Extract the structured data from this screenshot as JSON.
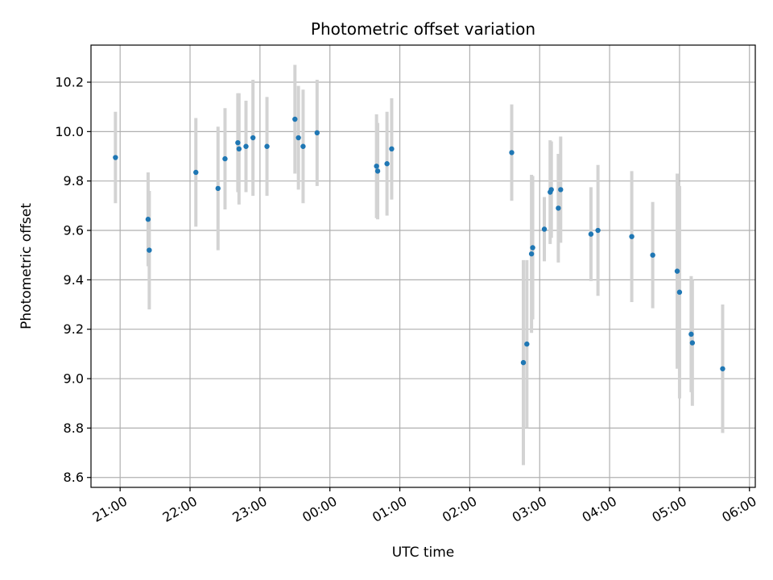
{
  "chart_data": {
    "type": "scatter",
    "title": "Photometric offset variation",
    "xlabel": "UTC time",
    "ylabel": "Photometric offset",
    "grid": true,
    "x_axis": {
      "kind": "time",
      "range": [
        "20:35",
        "06:05"
      ],
      "ticks": [
        "21:00",
        "22:00",
        "23:00",
        "00:00",
        "01:00",
        "02:00",
        "03:00",
        "04:00",
        "05:00",
        "06:00"
      ]
    },
    "y_axis": {
      "range": [
        8.56,
        10.35
      ],
      "ticks": [
        8.6,
        8.8,
        9.0,
        9.2,
        9.4,
        9.6,
        9.8,
        10.0,
        10.2
      ],
      "tick_labels": [
        "8.6",
        "8.8",
        "9.0",
        "9.2",
        "9.4",
        "9.6",
        "9.8",
        "10.0",
        "10.2"
      ]
    },
    "colors": {
      "point": "#1f77b4",
      "errorbar": "#d3d3d3",
      "grid": "#b0b0b0"
    },
    "points": [
      {
        "x": "20:56",
        "y": 9.895,
        "err": 0.185
      },
      {
        "x": "21:24",
        "y": 9.645,
        "err": 0.19
      },
      {
        "x": "21:25",
        "y": 9.52,
        "err": 0.24
      },
      {
        "x": "22:05",
        "y": 9.835,
        "err": 0.22
      },
      {
        "x": "22:24",
        "y": 9.77,
        "err": 0.25
      },
      {
        "x": "22:30",
        "y": 9.89,
        "err": 0.205
      },
      {
        "x": "22:41",
        "y": 9.955,
        "err": 0.2
      },
      {
        "x": "22:42",
        "y": 9.93,
        "err": 0.225
      },
      {
        "x": "22:48",
        "y": 9.94,
        "err": 0.185
      },
      {
        "x": "22:54",
        "y": 9.975,
        "err": 0.235
      },
      {
        "x": "23:06",
        "y": 9.94,
        "err": 0.2
      },
      {
        "x": "23:30",
        "y": 10.05,
        "err": 0.22
      },
      {
        "x": "23:33",
        "y": 9.975,
        "err": 0.21
      },
      {
        "x": "23:37",
        "y": 9.94,
        "err": 0.23
      },
      {
        "x": "23:49",
        "y": 9.995,
        "err": 0.215
      },
      {
        "x": "00:40",
        "y": 9.86,
        "err": 0.21
      },
      {
        "x": "00:41",
        "y": 9.84,
        "err": 0.195
      },
      {
        "x": "00:49",
        "y": 9.87,
        "err": 0.21
      },
      {
        "x": "00:53",
        "y": 9.93,
        "err": 0.205
      },
      {
        "x": "02:36",
        "y": 9.915,
        "err": 0.195
      },
      {
        "x": "02:46",
        "y": 9.065,
        "err": 0.415
      },
      {
        "x": "02:49",
        "y": 9.14,
        "err": 0.34
      },
      {
        "x": "02:53",
        "y": 9.505,
        "err": 0.32
      },
      {
        "x": "02:54",
        "y": 9.53,
        "err": 0.29
      },
      {
        "x": "03:04",
        "y": 9.605,
        "err": 0.13
      },
      {
        "x": "03:09",
        "y": 9.755,
        "err": 0.21
      },
      {
        "x": "03:10",
        "y": 9.765,
        "err": 0.195
      },
      {
        "x": "03:16",
        "y": 9.69,
        "err": 0.22
      },
      {
        "x": "03:18",
        "y": 9.765,
        "err": 0.215
      },
      {
        "x": "03:44",
        "y": 9.585,
        "err": 0.19
      },
      {
        "x": "03:50",
        "y": 9.6,
        "err": 0.265
      },
      {
        "x": "04:19",
        "y": 9.575,
        "err": 0.265
      },
      {
        "x": "04:37",
        "y": 9.5,
        "err": 0.215
      },
      {
        "x": "04:58",
        "y": 9.435,
        "err": 0.395
      },
      {
        "x": "05:00",
        "y": 9.35,
        "err": 0.43
      },
      {
        "x": "05:10",
        "y": 9.18,
        "err": 0.235
      },
      {
        "x": "05:11",
        "y": 9.145,
        "err": 0.255
      },
      {
        "x": "05:37",
        "y": 9.04,
        "err": 0.26
      }
    ]
  }
}
